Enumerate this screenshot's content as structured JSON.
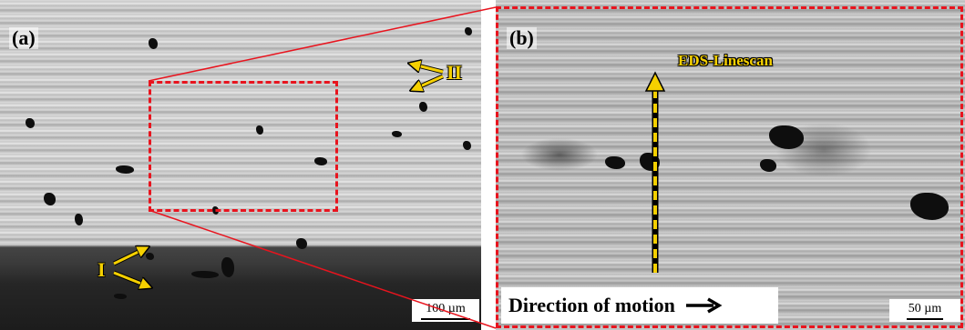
{
  "panel_a": {
    "label": "(a)",
    "markers": [
      "I",
      "II"
    ],
    "scale_bar": "100 µm"
  },
  "panel_b": {
    "label": "(b)",
    "eds_label": "EDS-Linescan",
    "direction_text": "Direction of motion",
    "scale_bar": "50 µm"
  },
  "colors": {
    "highlight_box": "#e8141e",
    "annotation_yellow": "#f5d000"
  }
}
